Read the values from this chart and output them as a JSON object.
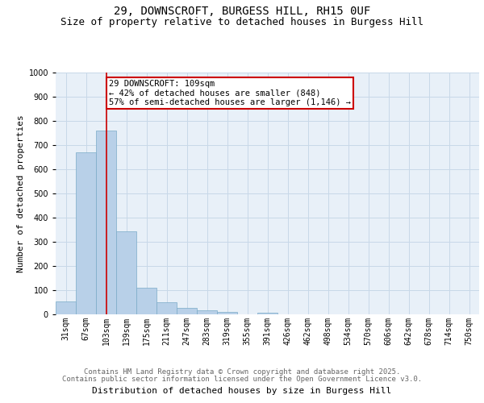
{
  "title_line1": "29, DOWNSCROFT, BURGESS HILL, RH15 0UF",
  "title_line2": "Size of property relative to detached houses in Burgess Hill",
  "xlabel": "Distribution of detached houses by size in Burgess Hill",
  "ylabel": "Number of detached properties",
  "categories": [
    "31sqm",
    "67sqm",
    "103sqm",
    "139sqm",
    "175sqm",
    "211sqm",
    "247sqm",
    "283sqm",
    "319sqm",
    "355sqm",
    "391sqm",
    "426sqm",
    "462sqm",
    "498sqm",
    "534sqm",
    "570sqm",
    "606sqm",
    "642sqm",
    "678sqm",
    "714sqm",
    "750sqm"
  ],
  "values": [
    55,
    670,
    760,
    345,
    110,
    50,
    27,
    17,
    10,
    0,
    8,
    0,
    0,
    0,
    0,
    0,
    0,
    0,
    0,
    0,
    0
  ],
  "bar_color": "#b8d0e8",
  "bar_edge_color": "#7aaac8",
  "grid_color": "#c8d8e8",
  "background_color": "#e8f0f8",
  "red_line_index": 2,
  "annotation_text": "29 DOWNSCROFT: 109sqm\n← 42% of detached houses are smaller (848)\n57% of semi-detached houses are larger (1,146) →",
  "annotation_box_color": "#ffffff",
  "annotation_box_edge": "#cc0000",
  "ylim": [
    0,
    1000
  ],
  "yticks": [
    0,
    100,
    200,
    300,
    400,
    500,
    600,
    700,
    800,
    900,
    1000
  ],
  "footer_line1": "Contains HM Land Registry data © Crown copyright and database right 2025.",
  "footer_line2": "Contains public sector information licensed under the Open Government Licence v3.0.",
  "title_fontsize": 10,
  "subtitle_fontsize": 9,
  "axis_label_fontsize": 8,
  "tick_fontsize": 7,
  "annotation_fontsize": 7.5,
  "footer_fontsize": 6.5
}
